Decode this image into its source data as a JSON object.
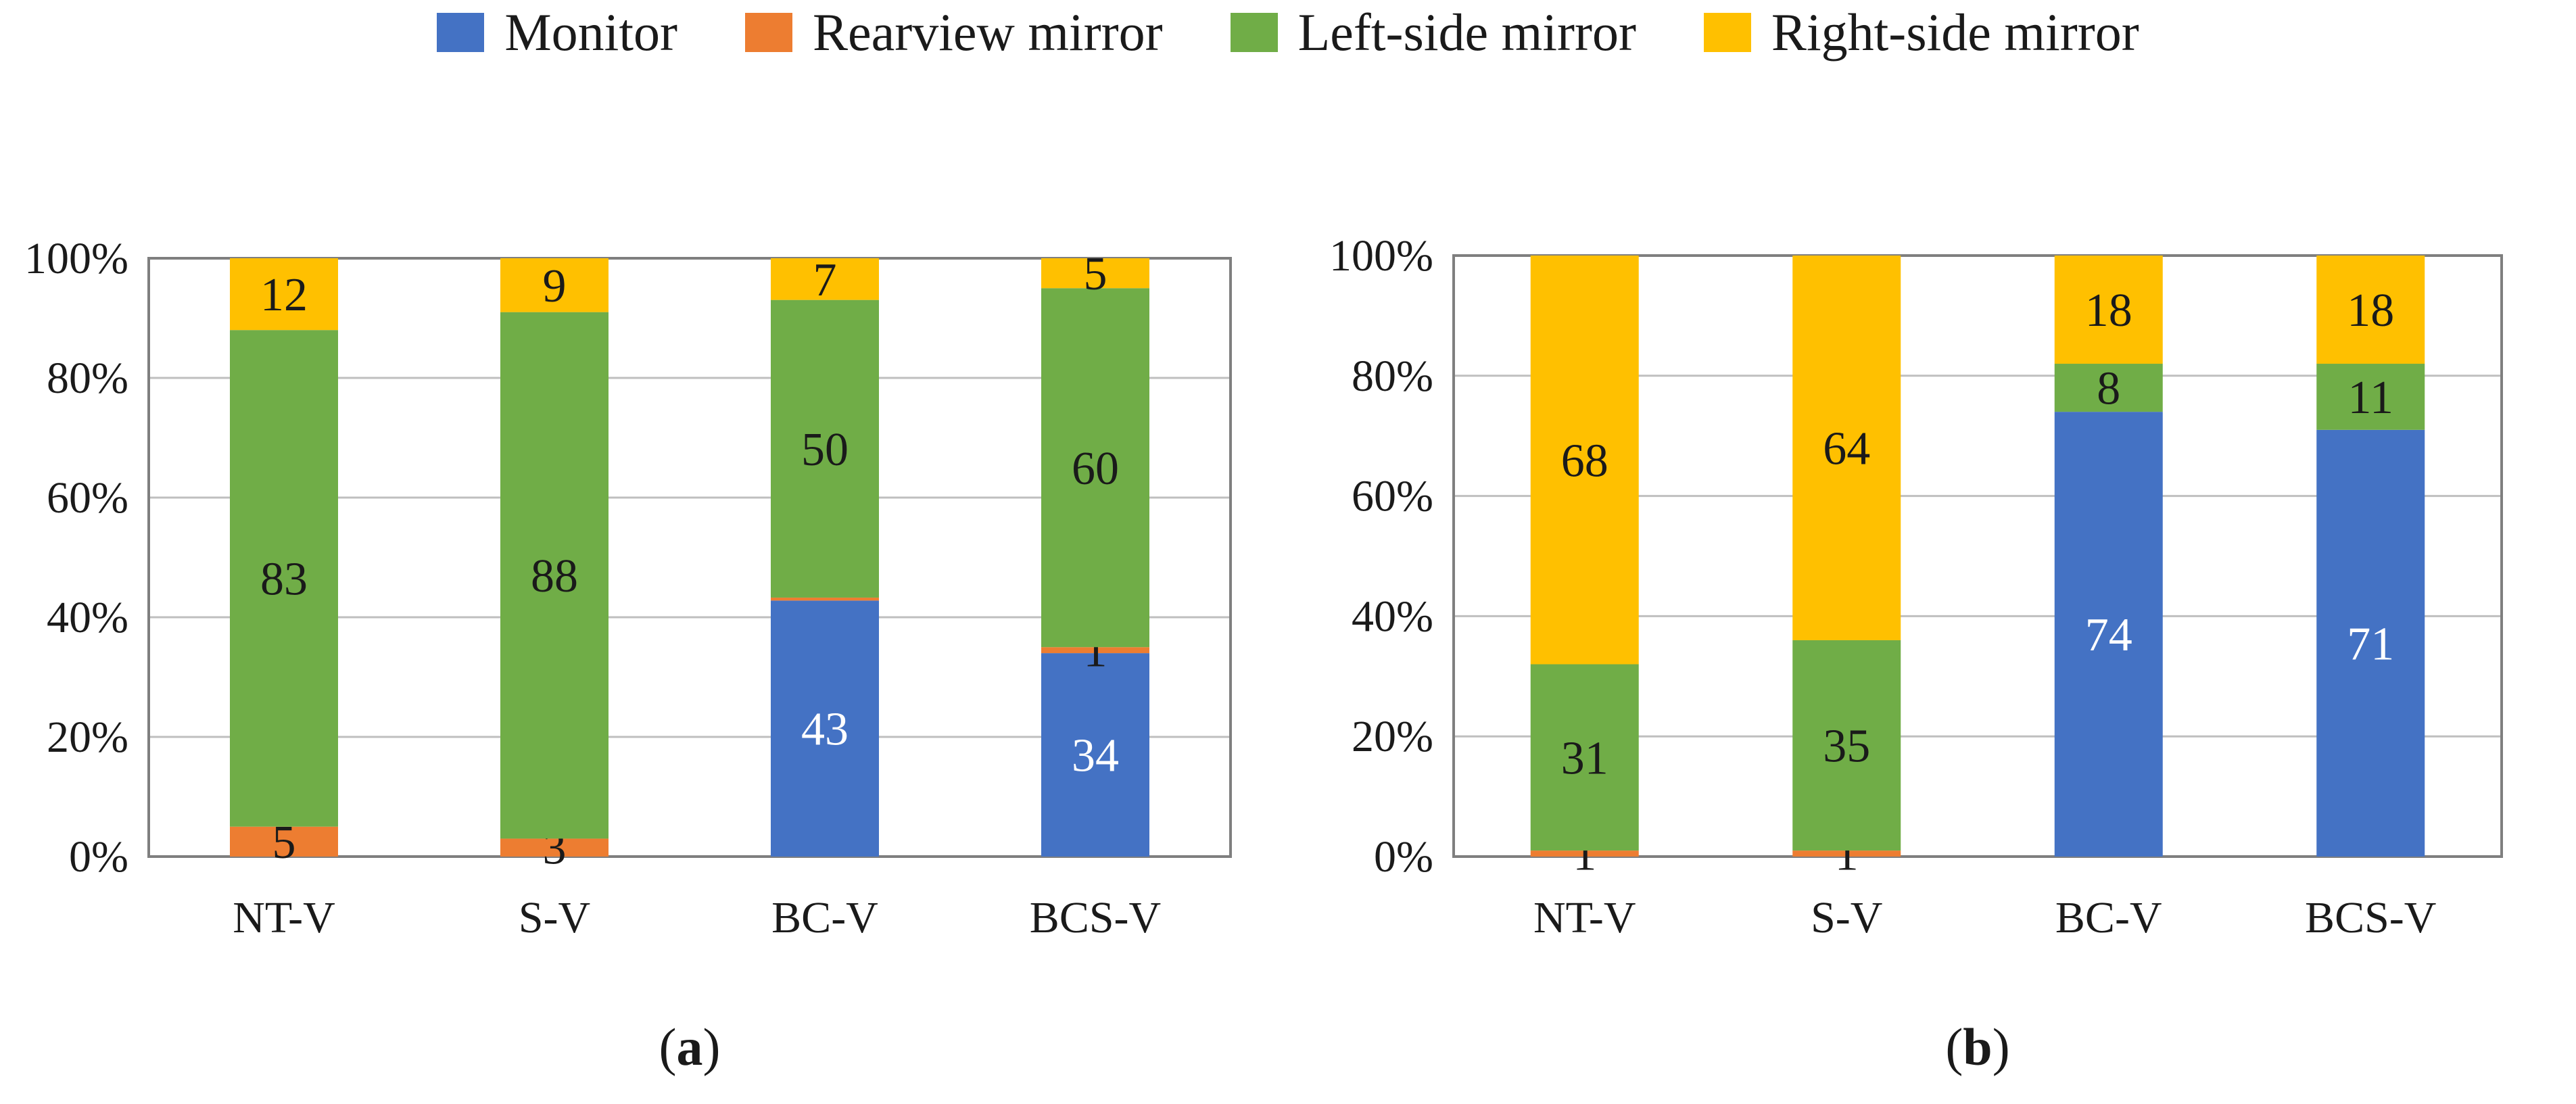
{
  "legend": [
    {
      "label": "Monitor",
      "color": "#4472C4"
    },
    {
      "label": "Rearview mirror",
      "color": "#ED7D31"
    },
    {
      "label": "Left-side mirror",
      "color": "#70AD47"
    },
    {
      "label": "Right-side mirror",
      "color": "#FFC000"
    }
  ],
  "chart_data": [
    {
      "type": "bar",
      "stacked": true,
      "normalized": true,
      "panel_label": "(a)",
      "categories": [
        "NT-V",
        "S-V",
        "BC-V",
        "BCS-V"
      ],
      "ylim": [
        0,
        100
      ],
      "yticks": [
        "0%",
        "20%",
        "40%",
        "60%",
        "80%",
        "100%"
      ],
      "series": [
        {
          "name": "Monitor",
          "values": [
            0,
            0,
            43,
            34
          ],
          "labels": [
            "",
            "",
            "43",
            "34"
          ]
        },
        {
          "name": "Rearview mirror",
          "values": [
            5,
            3,
            0.5,
            1
          ],
          "labels": [
            "5",
            "3",
            "",
            "1"
          ]
        },
        {
          "name": "Left-side mirror",
          "values": [
            83,
            88,
            50,
            60
          ],
          "labels": [
            "83",
            "88",
            "50",
            "60"
          ]
        },
        {
          "name": "Right-side mirror",
          "values": [
            12,
            9,
            7,
            5
          ],
          "labels": [
            "12",
            "9",
            "7",
            "5"
          ]
        }
      ]
    },
    {
      "type": "bar",
      "stacked": true,
      "normalized": true,
      "panel_label": "(b)",
      "categories": [
        "NT-V",
        "S-V",
        "BC-V",
        "BCS-V"
      ],
      "ylim": [
        0,
        100
      ],
      "yticks": [
        "0%",
        "20%",
        "40%",
        "60%",
        "80%",
        "100%"
      ],
      "series": [
        {
          "name": "Monitor",
          "values": [
            0,
            0,
            74,
            71
          ],
          "labels": [
            "",
            "",
            "74",
            "71"
          ]
        },
        {
          "name": "Rearview mirror",
          "values": [
            1,
            1,
            0,
            0
          ],
          "labels": [
            "1",
            "1",
            "",
            ""
          ]
        },
        {
          "name": "Left-side mirror",
          "values": [
            31,
            35,
            8,
            11
          ],
          "labels": [
            "31",
            "35",
            "8",
            "11"
          ]
        },
        {
          "name": "Right-side mirror",
          "values": [
            68,
            64,
            18,
            18
          ],
          "labels": [
            "68",
            "64",
            "18",
            "18"
          ]
        }
      ]
    }
  ]
}
